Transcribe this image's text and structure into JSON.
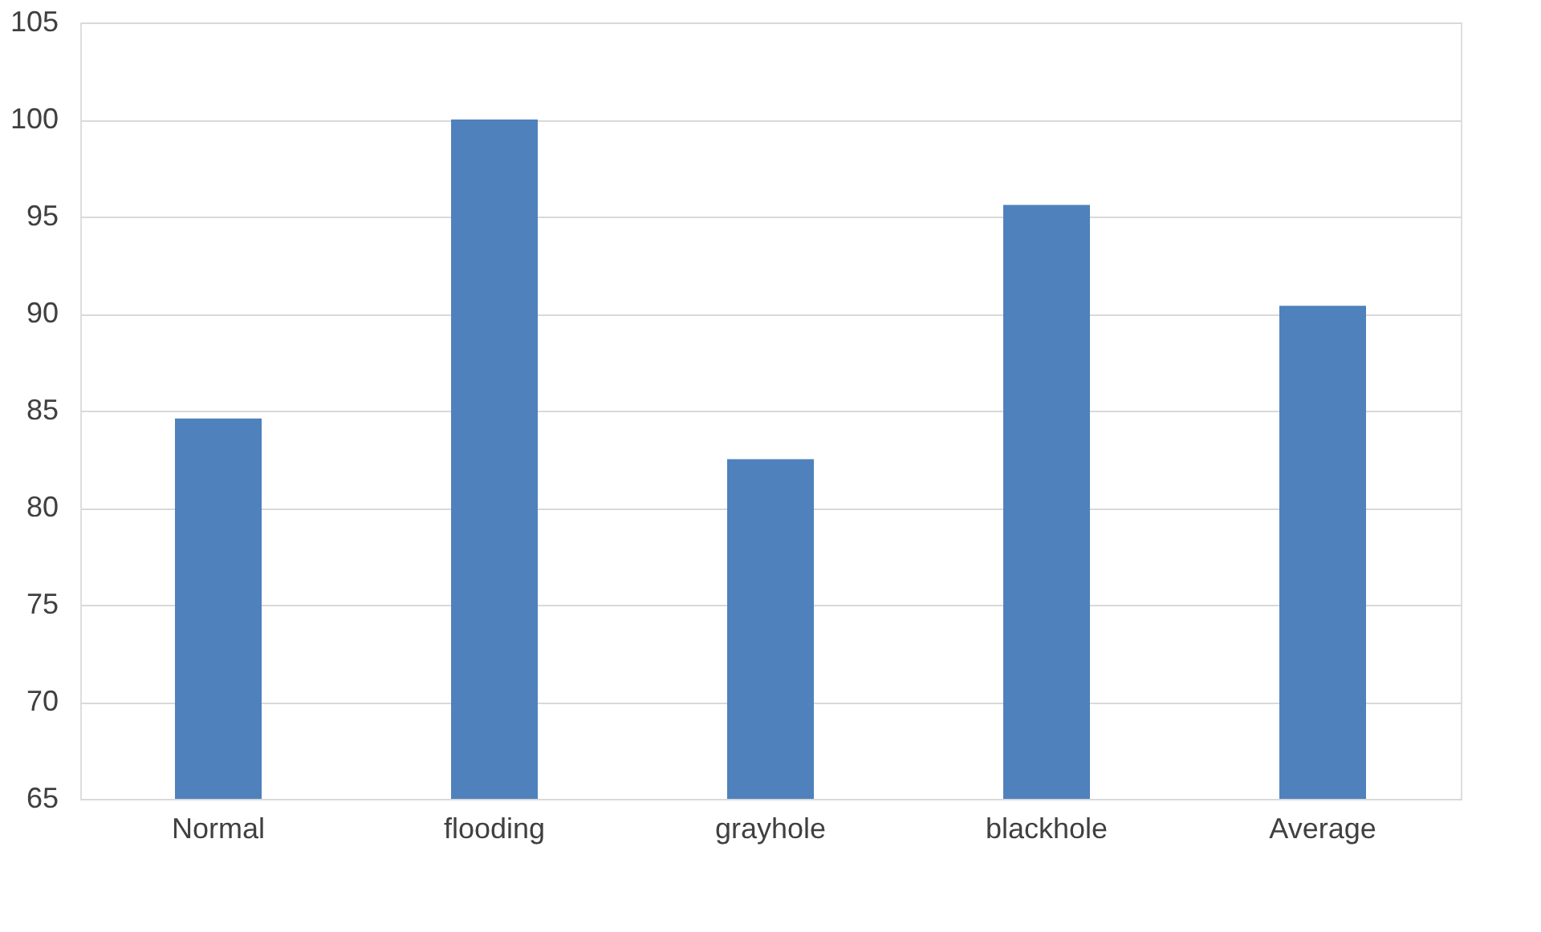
{
  "chart_data": {
    "type": "bar",
    "categories": [
      "Normal",
      "flooding",
      "grayhole",
      "blackhole",
      "Average"
    ],
    "values": [
      84.6,
      100,
      82.5,
      95.6,
      90.4
    ],
    "color": "#4f81bd",
    "ylim": [
      65,
      105
    ],
    "yticks": [
      65,
      70,
      75,
      80,
      85,
      90,
      95,
      100,
      105
    ],
    "grid": "y"
  }
}
